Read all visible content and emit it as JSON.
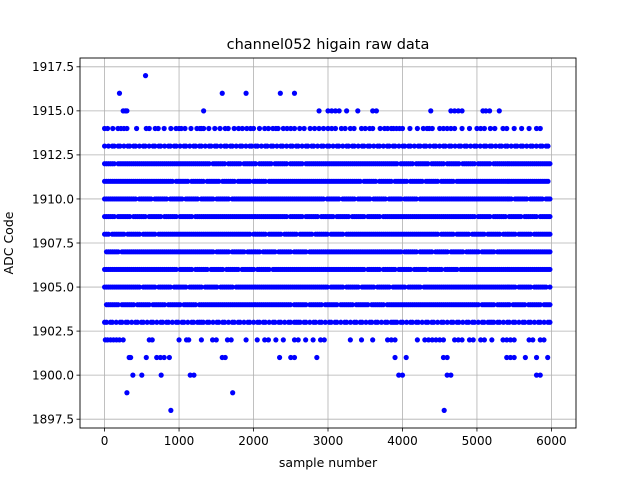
{
  "chart_data": {
    "type": "scatter",
    "title": "channel052 higain raw data",
    "xlabel": "sample number",
    "ylabel": "ADC Code",
    "xlim": [
      -330,
      6330
    ],
    "ylim": [
      1897.0,
      1918.0
    ],
    "xticks": [
      0,
      1000,
      2000,
      3000,
      4000,
      5000,
      6000
    ],
    "xtick_labels": [
      "0",
      "1000",
      "2000",
      "3000",
      "4000",
      "5000",
      "6000"
    ],
    "yticks": [
      1897.5,
      1900.0,
      1902.5,
      1905.0,
      1907.5,
      1910.0,
      1912.5,
      1915.0,
      1917.5
    ],
    "ytick_labels": [
      "1897.5",
      "1900.0",
      "1902.5",
      "1905.0",
      "1907.5",
      "1910.0",
      "1912.5",
      "1915.0",
      "1917.5"
    ],
    "grid": true,
    "marker_color": "#0000ff",
    "n_samples": 6000,
    "dense_levels": [
      1904,
      1905,
      1906,
      1907,
      1908,
      1909,
      1910,
      1911,
      1912
    ],
    "medium_levels": [
      1903,
      1913
    ],
    "sparse_levels": [
      {
        "y": 1902,
        "x": [
          10,
          40,
          80,
          120,
          160,
          200,
          250,
          600,
          640,
          1000,
          1100,
          1130,
          1300,
          1450,
          1500,
          1650,
          1700,
          1900,
          2050,
          2150,
          2200,
          2300,
          2400,
          2550,
          2600,
          2700,
          2800,
          2900,
          2950,
          3300,
          3450,
          3600,
          3800,
          3850,
          3900,
          4200,
          4300,
          4350,
          4400,
          4450,
          4500,
          4550,
          4700,
          4750,
          4800,
          4900,
          4950,
          5050,
          5100,
          5200,
          5350,
          5400,
          5450,
          5500,
          5700,
          5750,
          5850,
          5900
        ]
      },
      {
        "y": 1901,
        "x": [
          330,
          350,
          560,
          700,
          750,
          800,
          870,
          1580,
          1620,
          2350,
          2500,
          2550,
          2850,
          3900,
          4050,
          4550,
          4600,
          5400,
          5450,
          5500,
          5650,
          5800,
          5950
        ]
      },
      {
        "y": 1900,
        "x": [
          380,
          500,
          760,
          1150,
          1200,
          3950,
          4000,
          4600,
          4650,
          5800,
          5850
        ]
      },
      {
        "y": 1899,
        "x": [
          300,
          1720
        ]
      },
      {
        "y": 1898,
        "x": [
          890,
          4560
        ]
      },
      {
        "y": 1914,
        "x": [
          0,
          40,
          110,
          180,
          220,
          260,
          300,
          430,
          560,
          600,
          680,
          720,
          800,
          890,
          960,
          1000,
          1030,
          1080,
          1160,
          1240,
          1280,
          1300,
          1330,
          1400,
          1480,
          1550,
          1620,
          1660,
          1740,
          1800,
          1850,
          1910,
          1960,
          2000,
          2080,
          2150,
          2200,
          2260,
          2300,
          2330,
          2400,
          2450,
          2500,
          2550,
          2620,
          2680,
          2760,
          2820,
          2880,
          2940,
          3000,
          3050,
          3100,
          3180,
          3230,
          3300,
          3350,
          3450,
          3500,
          3560,
          3600,
          3700,
          3760,
          3800,
          3850,
          3880,
          3920,
          3960,
          4000,
          4100,
          4200,
          4280,
          4330,
          4360,
          4400,
          4500,
          4550,
          4600,
          4650,
          4700,
          4800,
          4900,
          5000,
          5050,
          5100,
          5180,
          5240,
          5350,
          5400,
          5500,
          5600,
          5700,
          5800,
          5850
        ]
      },
      {
        "y": 1915,
        "x": [
          250,
          280,
          300,
          1330,
          2880,
          3000,
          3050,
          3100,
          3150,
          3250,
          3400,
          3600,
          3650,
          4380,
          4650,
          4700,
          4750,
          4800,
          5080,
          5120,
          5170,
          5300
        ]
      },
      {
        "y": 1916,
        "x": [
          200,
          1580,
          1900,
          2360,
          2550
        ]
      },
      {
        "y": 1917,
        "x": [
          550
        ]
      }
    ]
  }
}
